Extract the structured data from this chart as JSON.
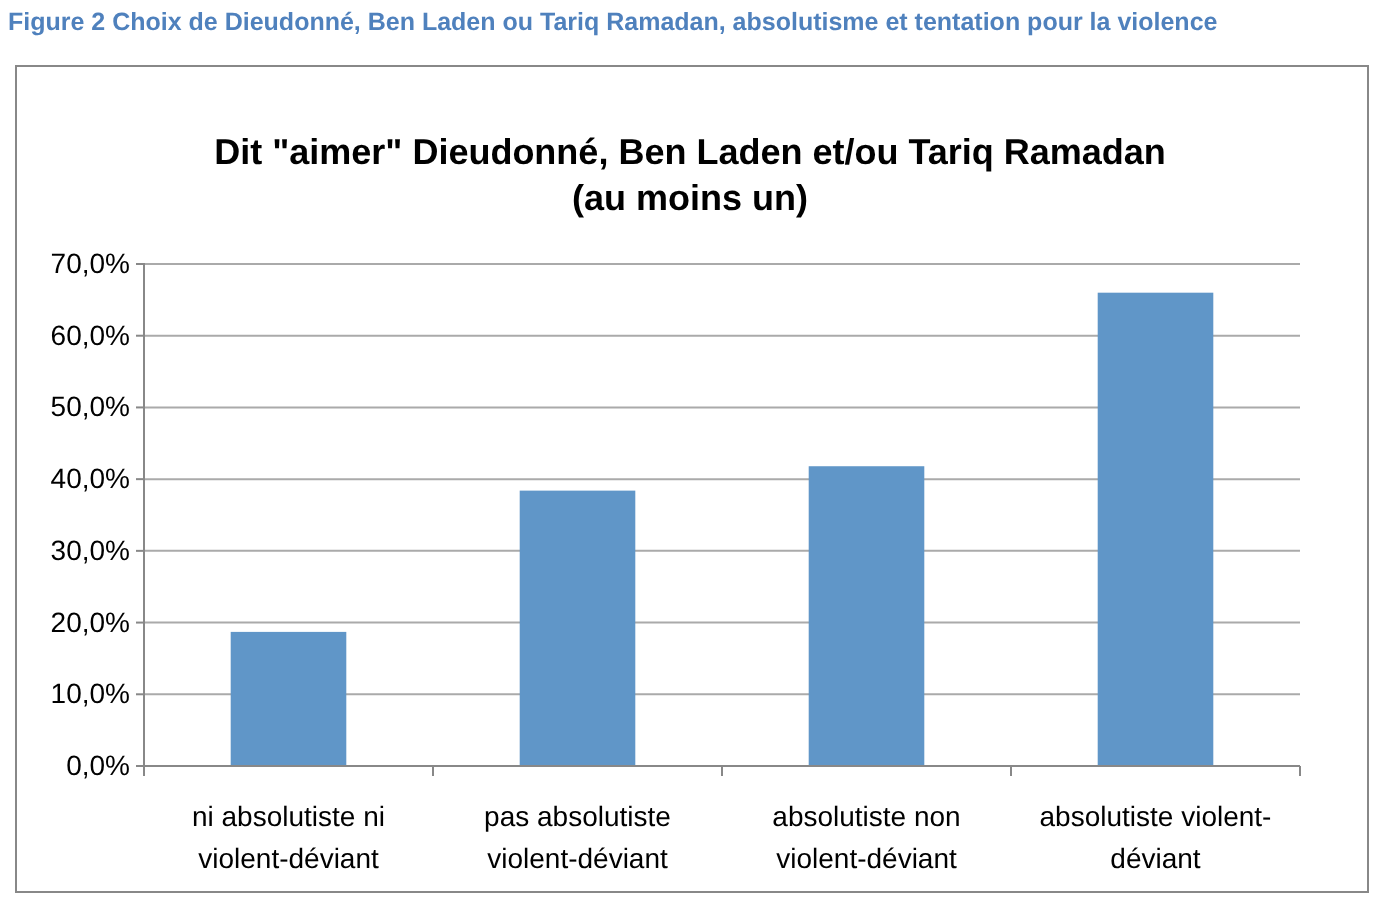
{
  "chart_data": {
    "type": "bar",
    "title": "Dit \"aimer\" Dieudonné, Ben Laden et/ou Tariq Ramadan\n(au moins un)",
    "annotations": [
      "Figure 2 Choix de Dieudonné, Ben Laden ou Tariq Ramadan, absolutisme et tentation pour la violence"
    ],
    "categories": [
      "ni absolutiste ni\nviolent-déviant",
      "pas absolutiste\nviolent-déviant",
      "absolutiste non\nviolent-déviant",
      "absolutiste violent-\ndéviant"
    ],
    "values": [
      18.7,
      38.4,
      41.8,
      66.0
    ],
    "color": "#6096c8",
    "ylim": [
      0,
      70
    ],
    "yticks": [
      {
        "value": 0,
        "label": "0,0%"
      },
      {
        "value": 10,
        "label": "10,0%"
      },
      {
        "value": 20,
        "label": "20,0%"
      },
      {
        "value": 30,
        "label": "30,0%"
      },
      {
        "value": 40,
        "label": "40,0%"
      },
      {
        "value": 50,
        "label": "50,0%"
      },
      {
        "value": 60,
        "label": "60,0%"
      },
      {
        "value": 70,
        "label": "70,0%"
      }
    ],
    "grid": "y"
  }
}
